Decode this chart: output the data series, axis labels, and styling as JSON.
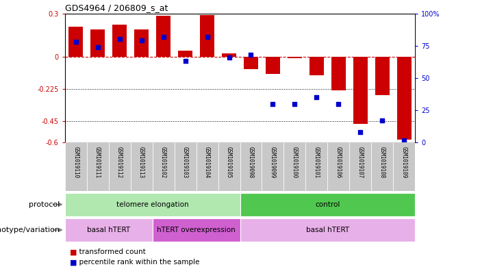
{
  "title": "GDS4964 / 206809_s_at",
  "categories": [
    "GSM1019110",
    "GSM1019111",
    "GSM1019112",
    "GSM1019113",
    "GSM1019102",
    "GSM1019103",
    "GSM1019104",
    "GSM1019105",
    "GSM1019098",
    "GSM1019099",
    "GSM1019100",
    "GSM1019101",
    "GSM1019106",
    "GSM1019107",
    "GSM1019108",
    "GSM1019109"
  ],
  "bar_values": [
    0.21,
    0.19,
    0.22,
    0.19,
    0.285,
    0.04,
    0.29,
    0.02,
    -0.09,
    -0.12,
    -0.01,
    -0.13,
    -0.235,
    -0.47,
    -0.27,
    -0.58
  ],
  "dot_values": [
    78,
    74,
    80,
    79,
    82,
    63,
    82,
    66,
    68,
    30,
    30,
    35,
    30,
    8,
    17,
    2
  ],
  "bar_color": "#cc0000",
  "dot_color": "#0000cc",
  "ylim_left": [
    -0.6,
    0.3
  ],
  "ylim_right": [
    0,
    100
  ],
  "yticks_left": [
    -0.6,
    -0.45,
    -0.225,
    0.0,
    0.3
  ],
  "ytick_labels_left": [
    "-0.6",
    "-0.45",
    "-0.225",
    "0",
    "0.3"
  ],
  "yticks_right": [
    0,
    25,
    50,
    75,
    100
  ],
  "ytick_labels_right": [
    "0",
    "25",
    "50",
    "75",
    "100%"
  ],
  "hline_y": 0.0,
  "dotted_lines": [
    -0.225,
    -0.45
  ],
  "protocol_label": "protocol",
  "genotype_label": "genotype/variation",
  "protocol_groups": [
    {
      "label": "telomere elongation",
      "start": 0,
      "end": 7,
      "color": "#b0e8b0"
    },
    {
      "label": "control",
      "start": 8,
      "end": 15,
      "color": "#50c850"
    }
  ],
  "genotype_groups": [
    {
      "label": "basal hTERT",
      "start": 0,
      "end": 3,
      "color": "#e8b0e8"
    },
    {
      "label": "hTERT overexpression",
      "start": 4,
      "end": 7,
      "color": "#d060d0"
    },
    {
      "label": "basal hTERT",
      "start": 8,
      "end": 15,
      "color": "#e8b0e8"
    }
  ],
  "legend_items": [
    {
      "label": "transformed count",
      "color": "#cc0000"
    },
    {
      "label": "percentile rank within the sample",
      "color": "#0000cc"
    }
  ],
  "bar_width": 0.65,
  "background_color": "#ffffff",
  "plot_bg_color": "#ffffff",
  "tick_color_left": "#cc0000",
  "tick_color_right": "#0000cc",
  "xtick_bg_color": "#c8c8c8"
}
